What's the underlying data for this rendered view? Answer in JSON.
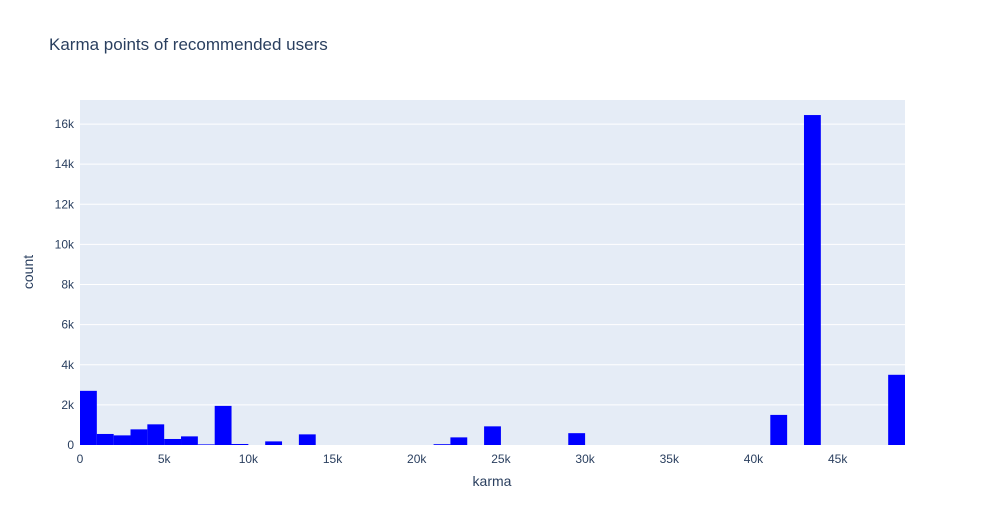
{
  "chart_data": {
    "type": "bar",
    "title": "Karma points of recommended users",
    "xlabel": "karma",
    "ylabel": "count",
    "xlim": [
      0,
      49000
    ],
    "ylim": [
      0,
      17200
    ],
    "bin_width": 1000,
    "grid": true,
    "x_ticks": [
      {
        "value": 0,
        "label": "0"
      },
      {
        "value": 5000,
        "label": "5k"
      },
      {
        "value": 10000,
        "label": "10k"
      },
      {
        "value": 15000,
        "label": "15k"
      },
      {
        "value": 20000,
        "label": "20k"
      },
      {
        "value": 25000,
        "label": "25k"
      },
      {
        "value": 30000,
        "label": "30k"
      },
      {
        "value": 35000,
        "label": "35k"
      },
      {
        "value": 40000,
        "label": "40k"
      },
      {
        "value": 45000,
        "label": "45k"
      }
    ],
    "y_ticks": [
      {
        "value": 0,
        "label": "0"
      },
      {
        "value": 2000,
        "label": "2k"
      },
      {
        "value": 4000,
        "label": "4k"
      },
      {
        "value": 6000,
        "label": "6k"
      },
      {
        "value": 8000,
        "label": "8k"
      },
      {
        "value": 10000,
        "label": "10k"
      },
      {
        "value": 12000,
        "label": "12k"
      },
      {
        "value": 14000,
        "label": "14k"
      },
      {
        "value": 16000,
        "label": "16k"
      }
    ],
    "bars": [
      {
        "x0": 0,
        "x1": 1000,
        "value": 2700
      },
      {
        "x0": 1000,
        "x1": 2000,
        "value": 550
      },
      {
        "x0": 2000,
        "x1": 3000,
        "value": 480
      },
      {
        "x0": 3000,
        "x1": 4000,
        "value": 780
      },
      {
        "x0": 4000,
        "x1": 5000,
        "value": 1030
      },
      {
        "x0": 5000,
        "x1": 6000,
        "value": 300
      },
      {
        "x0": 6000,
        "x1": 7000,
        "value": 430
      },
      {
        "x0": 7000,
        "x1": 8000,
        "value": 30
      },
      {
        "x0": 8000,
        "x1": 9000,
        "value": 1950
      },
      {
        "x0": 9000,
        "x1": 10000,
        "value": 50
      },
      {
        "x0": 11000,
        "x1": 12000,
        "value": 180
      },
      {
        "x0": 13000,
        "x1": 14000,
        "value": 530
      },
      {
        "x0": 21000,
        "x1": 22000,
        "value": 40
      },
      {
        "x0": 22000,
        "x1": 23000,
        "value": 380
      },
      {
        "x0": 24000,
        "x1": 25000,
        "value": 930
      },
      {
        "x0": 29000,
        "x1": 30000,
        "value": 590
      },
      {
        "x0": 41000,
        "x1": 42000,
        "value": 1500
      },
      {
        "x0": 43000,
        "x1": 44000,
        "value": 16450
      },
      {
        "x0": 48000,
        "x1": 49000,
        "value": 3500
      }
    ],
    "colors": {
      "bar": "#0000ff",
      "plot_bg": "#e5ecf6",
      "grid": "#ffffff",
      "text": "#2a3f5f"
    }
  }
}
